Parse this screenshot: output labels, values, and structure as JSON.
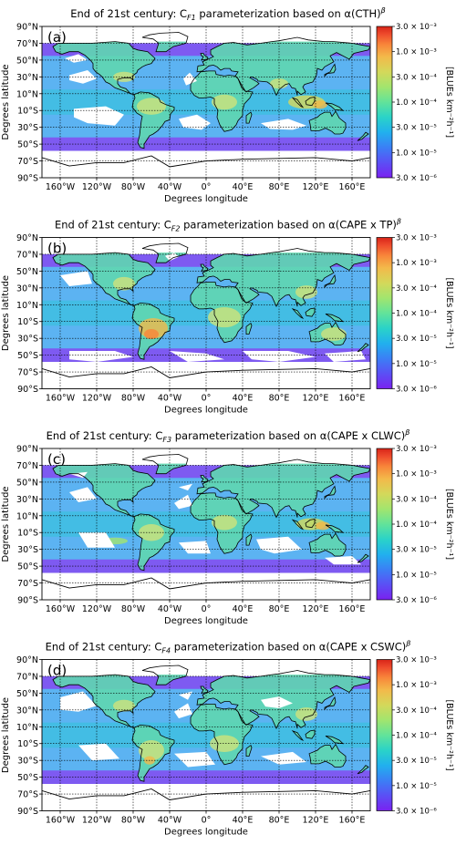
{
  "chart_data": [
    {
      "type": "heatmap",
      "panel_label": "(a)",
      "title": "End of 21st century: C",
      "title_sub": "F1",
      "title_rest": " parameterization based on α(CTH)",
      "title_sup": "β",
      "xlabel": "Degrees longitude",
      "ylabel": "Degrees latitude",
      "xticks": [
        "160°W",
        "120°W",
        "80°W",
        "40°W",
        "0°",
        "40°E",
        "80°E",
        "120°E",
        "160°E"
      ],
      "yticks": [
        "90°N",
        "70°N",
        "50°N",
        "30°N",
        "10°N",
        "10°S",
        "30°S",
        "50°S",
        "70°S",
        "90°S"
      ],
      "xlim": [
        -180,
        180
      ],
      "ylim": [
        -90,
        90
      ],
      "grid": true,
      "colorbar_label": "[BLUEs km⁻²h⁻¹]",
      "colorbar_ticks": [
        "3.0 × 10⁻³",
        "1.0 × 10⁻³",
        "3.0 × 10⁻⁴",
        "1.0 × 10⁻⁴",
        "3.0 × 10⁻⁵",
        "1.0 × 10⁻⁵",
        "3.0 × 10⁻⁶"
      ],
      "colorbar_range": [
        3e-06,
        0.003
      ]
    },
    {
      "type": "heatmap",
      "panel_label": "(b)",
      "title": "End of 21st century: C",
      "title_sub": "F2",
      "title_rest": " parameterization based on α(CAPE x TP)",
      "title_sup": "β",
      "xlabel": "Degrees longitude",
      "ylabel": "Degrees latitude",
      "xticks": [
        "160°W",
        "120°W",
        "80°W",
        "40°W",
        "0°",
        "40°E",
        "80°E",
        "120°E",
        "160°E"
      ],
      "yticks": [
        "90°N",
        "70°N",
        "50°N",
        "30°N",
        "10°N",
        "10°S",
        "30°S",
        "50°S",
        "70°S",
        "90°S"
      ],
      "xlim": [
        -180,
        180
      ],
      "ylim": [
        -90,
        90
      ],
      "grid": true,
      "colorbar_label": "[BLUEs km⁻²h⁻¹]",
      "colorbar_ticks": [
        "3.0 × 10⁻³",
        "1.0 × 10⁻³",
        "3.0 × 10⁻⁴",
        "1.0 × 10⁻⁴",
        "3.0 × 10⁻⁵",
        "1.0 × 10⁻⁵",
        "3.0 × 10⁻⁶"
      ],
      "colorbar_range": [
        3e-06,
        0.003
      ]
    },
    {
      "type": "heatmap",
      "panel_label": "(c)",
      "title": "End of 21st century: C",
      "title_sub": "F3",
      "title_rest": " parameterization based on α(CAPE x CLWC)",
      "title_sup": "β",
      "xlabel": "Degrees longitude",
      "ylabel": "Degrees latitude",
      "xticks": [
        "160°W",
        "120°W",
        "80°W",
        "40°W",
        "0°",
        "40°E",
        "80°E",
        "120°E",
        "160°E"
      ],
      "yticks": [
        "90°N",
        "70°N",
        "50°N",
        "30°N",
        "10°N",
        "10°S",
        "30°S",
        "50°S",
        "70°S",
        "90°S"
      ],
      "xlim": [
        -180,
        180
      ],
      "ylim": [
        -90,
        90
      ],
      "grid": true,
      "colorbar_label": "[BLUEs km⁻²h⁻¹]",
      "colorbar_ticks": [
        "3.0 × 10⁻³",
        "1.0 × 10⁻³",
        "3.0 × 10⁻⁴",
        "1.0 × 10⁻⁴",
        "3.0 × 10⁻⁵",
        "1.0 × 10⁻⁵",
        "3.0 × 10⁻⁶"
      ],
      "colorbar_range": [
        3e-06,
        0.003
      ]
    },
    {
      "type": "heatmap",
      "panel_label": "(d)",
      "title": "End of 21st century: C",
      "title_sub": "F4",
      "title_rest": " parameterization based on α(CAPE x CSWC)",
      "title_sup": "β",
      "xlabel": "Degrees longitude",
      "ylabel": "Degrees latitude",
      "xticks": [
        "160°W",
        "120°W",
        "80°W",
        "40°W",
        "0°",
        "40°E",
        "80°E",
        "120°E",
        "160°E"
      ],
      "yticks": [
        "90°N",
        "70°N",
        "50°N",
        "30°N",
        "10°N",
        "10°S",
        "30°S",
        "50°S",
        "70°S",
        "90°S"
      ],
      "xlim": [
        -180,
        180
      ],
      "ylim": [
        -90,
        90
      ],
      "grid": true,
      "colorbar_label": "[BLUEs km⁻²h⁻¹]",
      "colorbar_ticks": [
        "3.0 × 10⁻³",
        "1.0 × 10⁻³",
        "3.0 × 10⁻⁴",
        "1.0 × 10⁻⁴",
        "3.0 × 10⁻⁵",
        "1.0 × 10⁻⁵",
        "3.0 × 10⁻⁶"
      ],
      "colorbar_range": [
        3e-06,
        0.003
      ]
    }
  ],
  "colors": {
    "colormap": [
      "#7a21f0",
      "#5b4ff5",
      "#3b7ff5",
      "#21b0ee",
      "#2ad3c8",
      "#62e39a",
      "#a2e56e",
      "#d4d85a",
      "#f3b94a",
      "#f8863a",
      "#ee4a2c",
      "#d82418"
    ],
    "ocean_low": "#8a3cf0",
    "ocean_mid": "#3fa6f0",
    "land_mid": "#5fd6b0",
    "land_high": "#cfe27a",
    "coast": "#000000",
    "grid": "#000000"
  }
}
